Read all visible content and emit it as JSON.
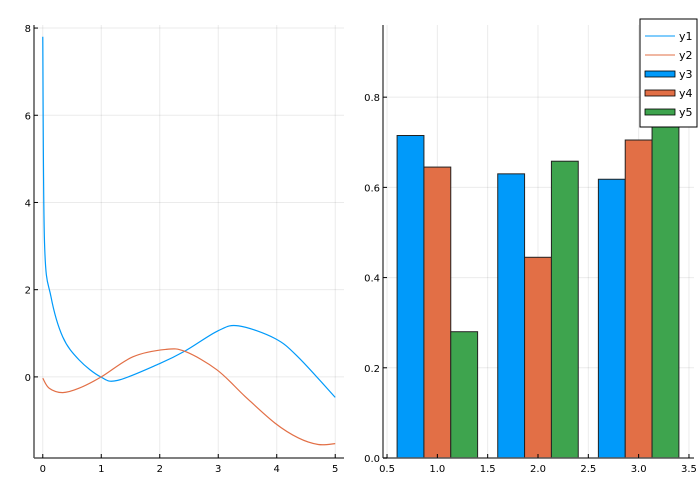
{
  "chart_data": [
    {
      "type": "line",
      "title": "",
      "xlabel": "",
      "ylabel": "",
      "xlim": [
        -0.15,
        5.15
      ],
      "ylim": [
        -1.86,
        8.07
      ],
      "xticks": [
        "0",
        "1",
        "2",
        "3",
        "4",
        "5"
      ],
      "xtick_values": [
        0,
        1,
        2,
        3,
        4,
        5
      ],
      "yticks": [
        "0",
        "2",
        "4",
        "6",
        "8"
      ],
      "ytick_values": [
        0,
        2,
        4,
        6,
        8
      ],
      "grid": true,
      "series": [
        {
          "name": "y1",
          "color": "#009AFA",
          "x": [
            0.0,
            0.03,
            0.14,
            0.34,
            0.62,
            0.99,
            1.28,
            1.99,
            2.44,
            3.0,
            3.35,
            3.97,
            4.37,
            5.0
          ],
          "y": [
            7.8,
            3.07,
            1.84,
            0.92,
            0.39,
            0.0,
            -0.08,
            0.3,
            0.6,
            1.06,
            1.17,
            0.88,
            0.45,
            -0.47
          ]
        },
        {
          "name": "y2",
          "color": "#E26F46",
          "x": [
            0.0,
            0.11,
            0.34,
            0.62,
            1.0,
            1.54,
            2.1,
            2.44,
            2.98,
            3.46,
            3.97,
            4.37,
            4.71,
            5.0
          ],
          "y": [
            -0.03,
            -0.26,
            -0.36,
            -0.26,
            0.0,
            0.46,
            0.63,
            0.58,
            0.16,
            -0.45,
            -1.06,
            -1.4,
            -1.55,
            -1.53
          ]
        }
      ]
    },
    {
      "type": "bar",
      "title": "",
      "xlabel": "",
      "ylabel": "",
      "categories": [
        1,
        2,
        3
      ],
      "xlim": [
        0.46,
        3.55
      ],
      "ylim": [
        0,
        0.96
      ],
      "xticks": [
        "0.5",
        "1.0",
        "1.5",
        "2.0",
        "2.5",
        "3.0",
        "3.5"
      ],
      "xtick_values": [
        0.5,
        1,
        1.5,
        2,
        2.5,
        3,
        3.5
      ],
      "yticks": [
        "0.0",
        "0.2",
        "0.4",
        "0.6",
        "0.8"
      ],
      "ytick_values": [
        0,
        0.2,
        0.4,
        0.6,
        0.8
      ],
      "grid": true,
      "series": [
        {
          "name": "y3",
          "color": "#009AFA",
          "values": [
            0.715,
            0.63,
            0.618
          ]
        },
        {
          "name": "y4",
          "color": "#E26F46",
          "values": [
            0.645,
            0.445,
            0.705
          ]
        },
        {
          "name": "y5",
          "color": "#3EA44E",
          "values": [
            0.28,
            0.658,
            0.93
          ]
        }
      ]
    }
  ],
  "legend": {
    "placement": "top-right",
    "entries": [
      {
        "label": "y1",
        "color": "#009AFA",
        "kind": "line"
      },
      {
        "label": "y2",
        "color": "#E26F46",
        "kind": "line"
      },
      {
        "label": "y3",
        "color": "#009AFA",
        "kind": "bar"
      },
      {
        "label": "y4",
        "color": "#E26F46",
        "kind": "bar"
      },
      {
        "label": "y5",
        "color": "#3EA44E",
        "kind": "bar"
      }
    ]
  }
}
